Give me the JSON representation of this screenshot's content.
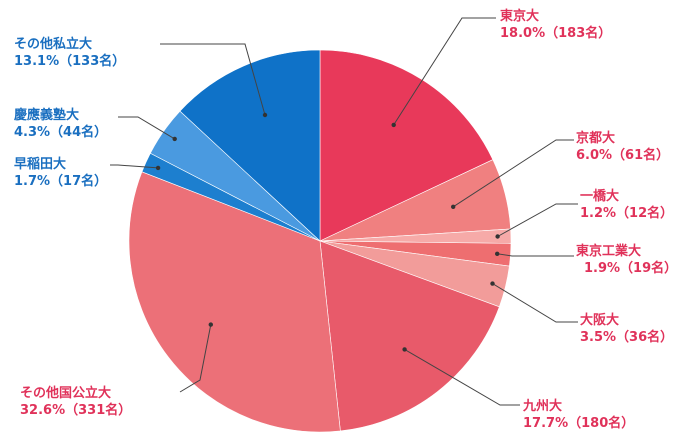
{
  "chart_data": {
    "type": "pie",
    "title": "",
    "start_angle_deg": 0,
    "direction": "clockwise",
    "slices": [
      {
        "name": "東京大",
        "percent": 18.0,
        "count": 183,
        "value_label": "18.0%（183名）",
        "color": "#e8395a"
      },
      {
        "name": "京都大",
        "percent": 6.0,
        "count": 61,
        "value_label": "6.0%（61名）",
        "color": "#f08080"
      },
      {
        "name": "一橋大",
        "percent": 1.2,
        "count": 12,
        "value_label": "1.2%（12名）",
        "color": "#f6aaa8"
      },
      {
        "name": "東京工業大",
        "percent": 1.9,
        "count": 19,
        "value_label": "1.9%（19名）",
        "color": "#ee6e70"
      },
      {
        "name": "大阪大",
        "percent": 3.5,
        "count": 36,
        "value_label": "3.5%（36名）",
        "color": "#f29c9a"
      },
      {
        "name": "九州大",
        "percent": 17.7,
        "count": 180,
        "value_label": "17.7%（180名）",
        "color": "#e85a6a"
      },
      {
        "name": "その他国公立大",
        "percent": 32.6,
        "count": 331,
        "value_label": "32.6%（331名）",
        "color": "#ec7078"
      },
      {
        "name": "早稲田大",
        "percent": 1.7,
        "count": 17,
        "value_label": "1.7%（17名）",
        "color": "#1d7fcf"
      },
      {
        "name": "慶應義塾大",
        "percent": 4.3,
        "count": 44,
        "value_label": "4.3%（44名）",
        "color": "#4a9ae0"
      },
      {
        "name": "その他私立大",
        "percent": 13.1,
        "count": 133,
        "value_label": "13.1%（133名）",
        "color": "#0f72c8"
      }
    ],
    "label_colors": {
      "national": "#e0325a",
      "private": "#1a6fc0"
    }
  }
}
